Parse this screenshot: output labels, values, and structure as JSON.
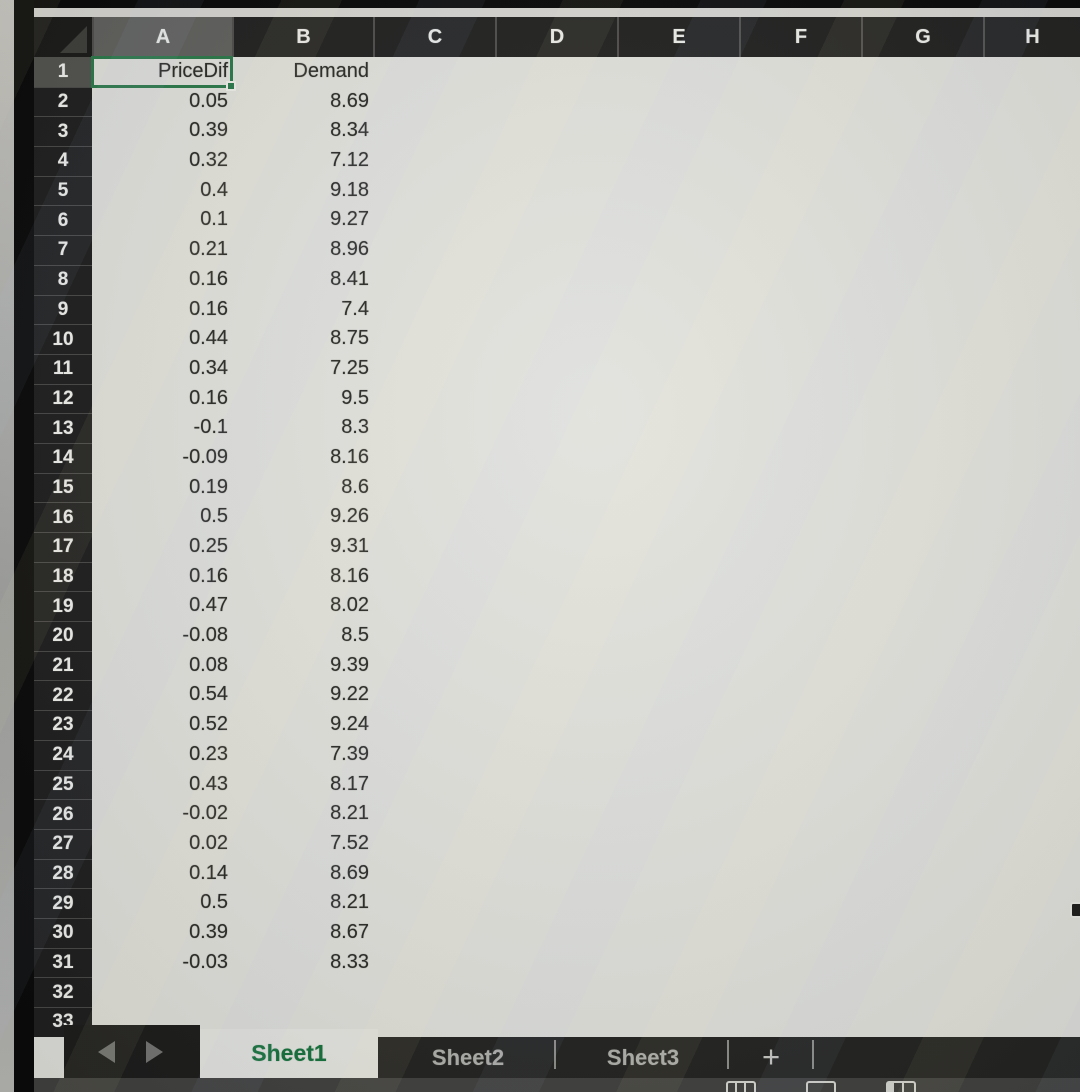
{
  "spreadsheet": {
    "column_letters": [
      "A",
      "B",
      "C",
      "D",
      "E",
      "F",
      "G",
      "H"
    ],
    "visible_row_count": 33,
    "active_cell": {
      "address": "A1",
      "column": "A",
      "row": 1,
      "value": "PriceDif"
    },
    "table": {
      "column_a_header": "PriceDif",
      "column_b_header": "Demand",
      "data_start_row": 2,
      "rows": [
        [
          "0.05",
          "8.69"
        ],
        [
          "0.39",
          "8.34"
        ],
        [
          "0.32",
          "7.12"
        ],
        [
          "0.4",
          "9.18"
        ],
        [
          "0.1",
          "9.27"
        ],
        [
          "0.21",
          "8.96"
        ],
        [
          "0.16",
          "8.41"
        ],
        [
          "0.16",
          "7.4"
        ],
        [
          "0.44",
          "8.75"
        ],
        [
          "0.34",
          "7.25"
        ],
        [
          "0.16",
          "9.5"
        ],
        [
          "-0.1",
          "8.3"
        ],
        [
          "-0.09",
          "8.16"
        ],
        [
          "0.19",
          "8.6"
        ],
        [
          "0.5",
          "9.26"
        ],
        [
          "0.25",
          "9.31"
        ],
        [
          "0.16",
          "8.16"
        ],
        [
          "0.47",
          "8.02"
        ],
        [
          "-0.08",
          "8.5"
        ],
        [
          "0.08",
          "9.39"
        ],
        [
          "0.54",
          "9.22"
        ],
        [
          "0.52",
          "9.24"
        ],
        [
          "0.23",
          "7.39"
        ],
        [
          "0.43",
          "8.17"
        ],
        [
          "-0.02",
          "8.21"
        ],
        [
          "0.02",
          "7.52"
        ],
        [
          "0.14",
          "8.69"
        ],
        [
          "0.5",
          "8.21"
        ],
        [
          "0.39",
          "8.67"
        ],
        [
          "-0.03",
          "8.33"
        ]
      ]
    }
  },
  "sheet_tabs": {
    "active": "Sheet1",
    "inactive": [
      "Sheet2",
      "Sheet3"
    ],
    "add_button": "+"
  },
  "colors": {
    "selection_green": "#2c7a4b",
    "active_tab_text": "#18743e",
    "header_bg": "#222221",
    "header_active_bg": "#61615e",
    "grid_bg": "#e2e2dd"
  }
}
